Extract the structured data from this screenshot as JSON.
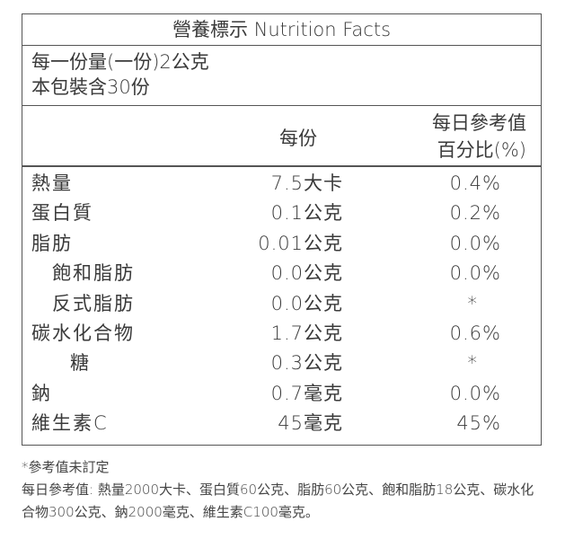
{
  "header": {
    "title": "營養標示 Nutrition Facts"
  },
  "serving": [
    "每一份量(一份)2公克",
    "本包裝含30份"
  ],
  "columns": {
    "per_serving": "每份",
    "daily": [
      "每日參考值",
      "百分比(%)"
    ]
  },
  "rows": [
    {
      "name": "熱量",
      "per_serving": "7.5大卡",
      "daily": "0.4%",
      "level": 0
    },
    {
      "name": "蛋白質",
      "per_serving": "0.1公克",
      "daily": "0.2%",
      "level": 0
    },
    {
      "name": "脂肪",
      "per_serving": "0.01公克",
      "daily": "0.0%",
      "level": 0
    },
    {
      "name": "飽和脂肪",
      "per_serving": "0.0公克",
      "daily": "0.0%",
      "level": 1
    },
    {
      "name": "反式脂肪",
      "per_serving": "0.0公克",
      "daily": "*",
      "level": 1
    },
    {
      "name": "碳水化合物",
      "per_serving": "1.7公克",
      "daily": "0.6%",
      "level": 0
    },
    {
      "name": "糖",
      "per_serving": "0.3公克",
      "daily": "*",
      "level": 2
    },
    {
      "name": "鈉",
      "per_serving": "0.7毫克",
      "daily": "0.0%",
      "level": 0
    },
    {
      "name": "維生素C",
      "per_serving": "45毫克",
      "daily": "45%",
      "level": 0
    }
  ],
  "footnotes": [
    "*參考值未訂定",
    "每日參考值: 熱量2000大卡、蛋白質60公克、脂肪60公克、飽和脂肪18公克、碳水化合物300公克、鈉2000毫克、維生素C100毫克。"
  ]
}
